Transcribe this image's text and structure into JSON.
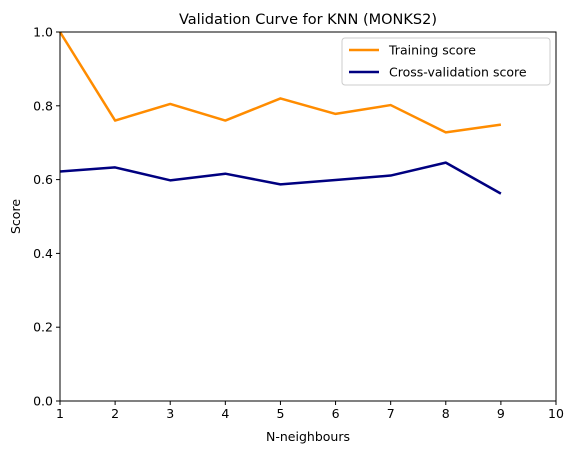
{
  "chart_data": {
    "type": "line",
    "title": "Validation Curve for KNN (MONKS2)",
    "xlabel": "N-neighbours",
    "ylabel": "Score",
    "xlim": [
      1,
      10
    ],
    "ylim": [
      0.0,
      1.0
    ],
    "x_ticks": [
      "1",
      "2",
      "3",
      "4",
      "5",
      "6",
      "7",
      "8",
      "9",
      "10"
    ],
    "y_ticks": [
      "0.0",
      "0.2",
      "0.4",
      "0.6",
      "0.8",
      "1.0"
    ],
    "grid": false,
    "legend_position": "top-right",
    "x": [
      1,
      2,
      3,
      4,
      5,
      6,
      7,
      8,
      9
    ],
    "series": [
      {
        "name": "Training score",
        "color": "#ff8c00",
        "values": [
          1.0,
          0.76,
          0.805,
          0.76,
          0.82,
          0.778,
          0.802,
          0.728,
          0.749
        ]
      },
      {
        "name": "Cross-validation score",
        "color": "#000080",
        "values": [
          0.622,
          0.633,
          0.598,
          0.616,
          0.587,
          0.599,
          0.611,
          0.646,
          0.562
        ]
      }
    ]
  }
}
